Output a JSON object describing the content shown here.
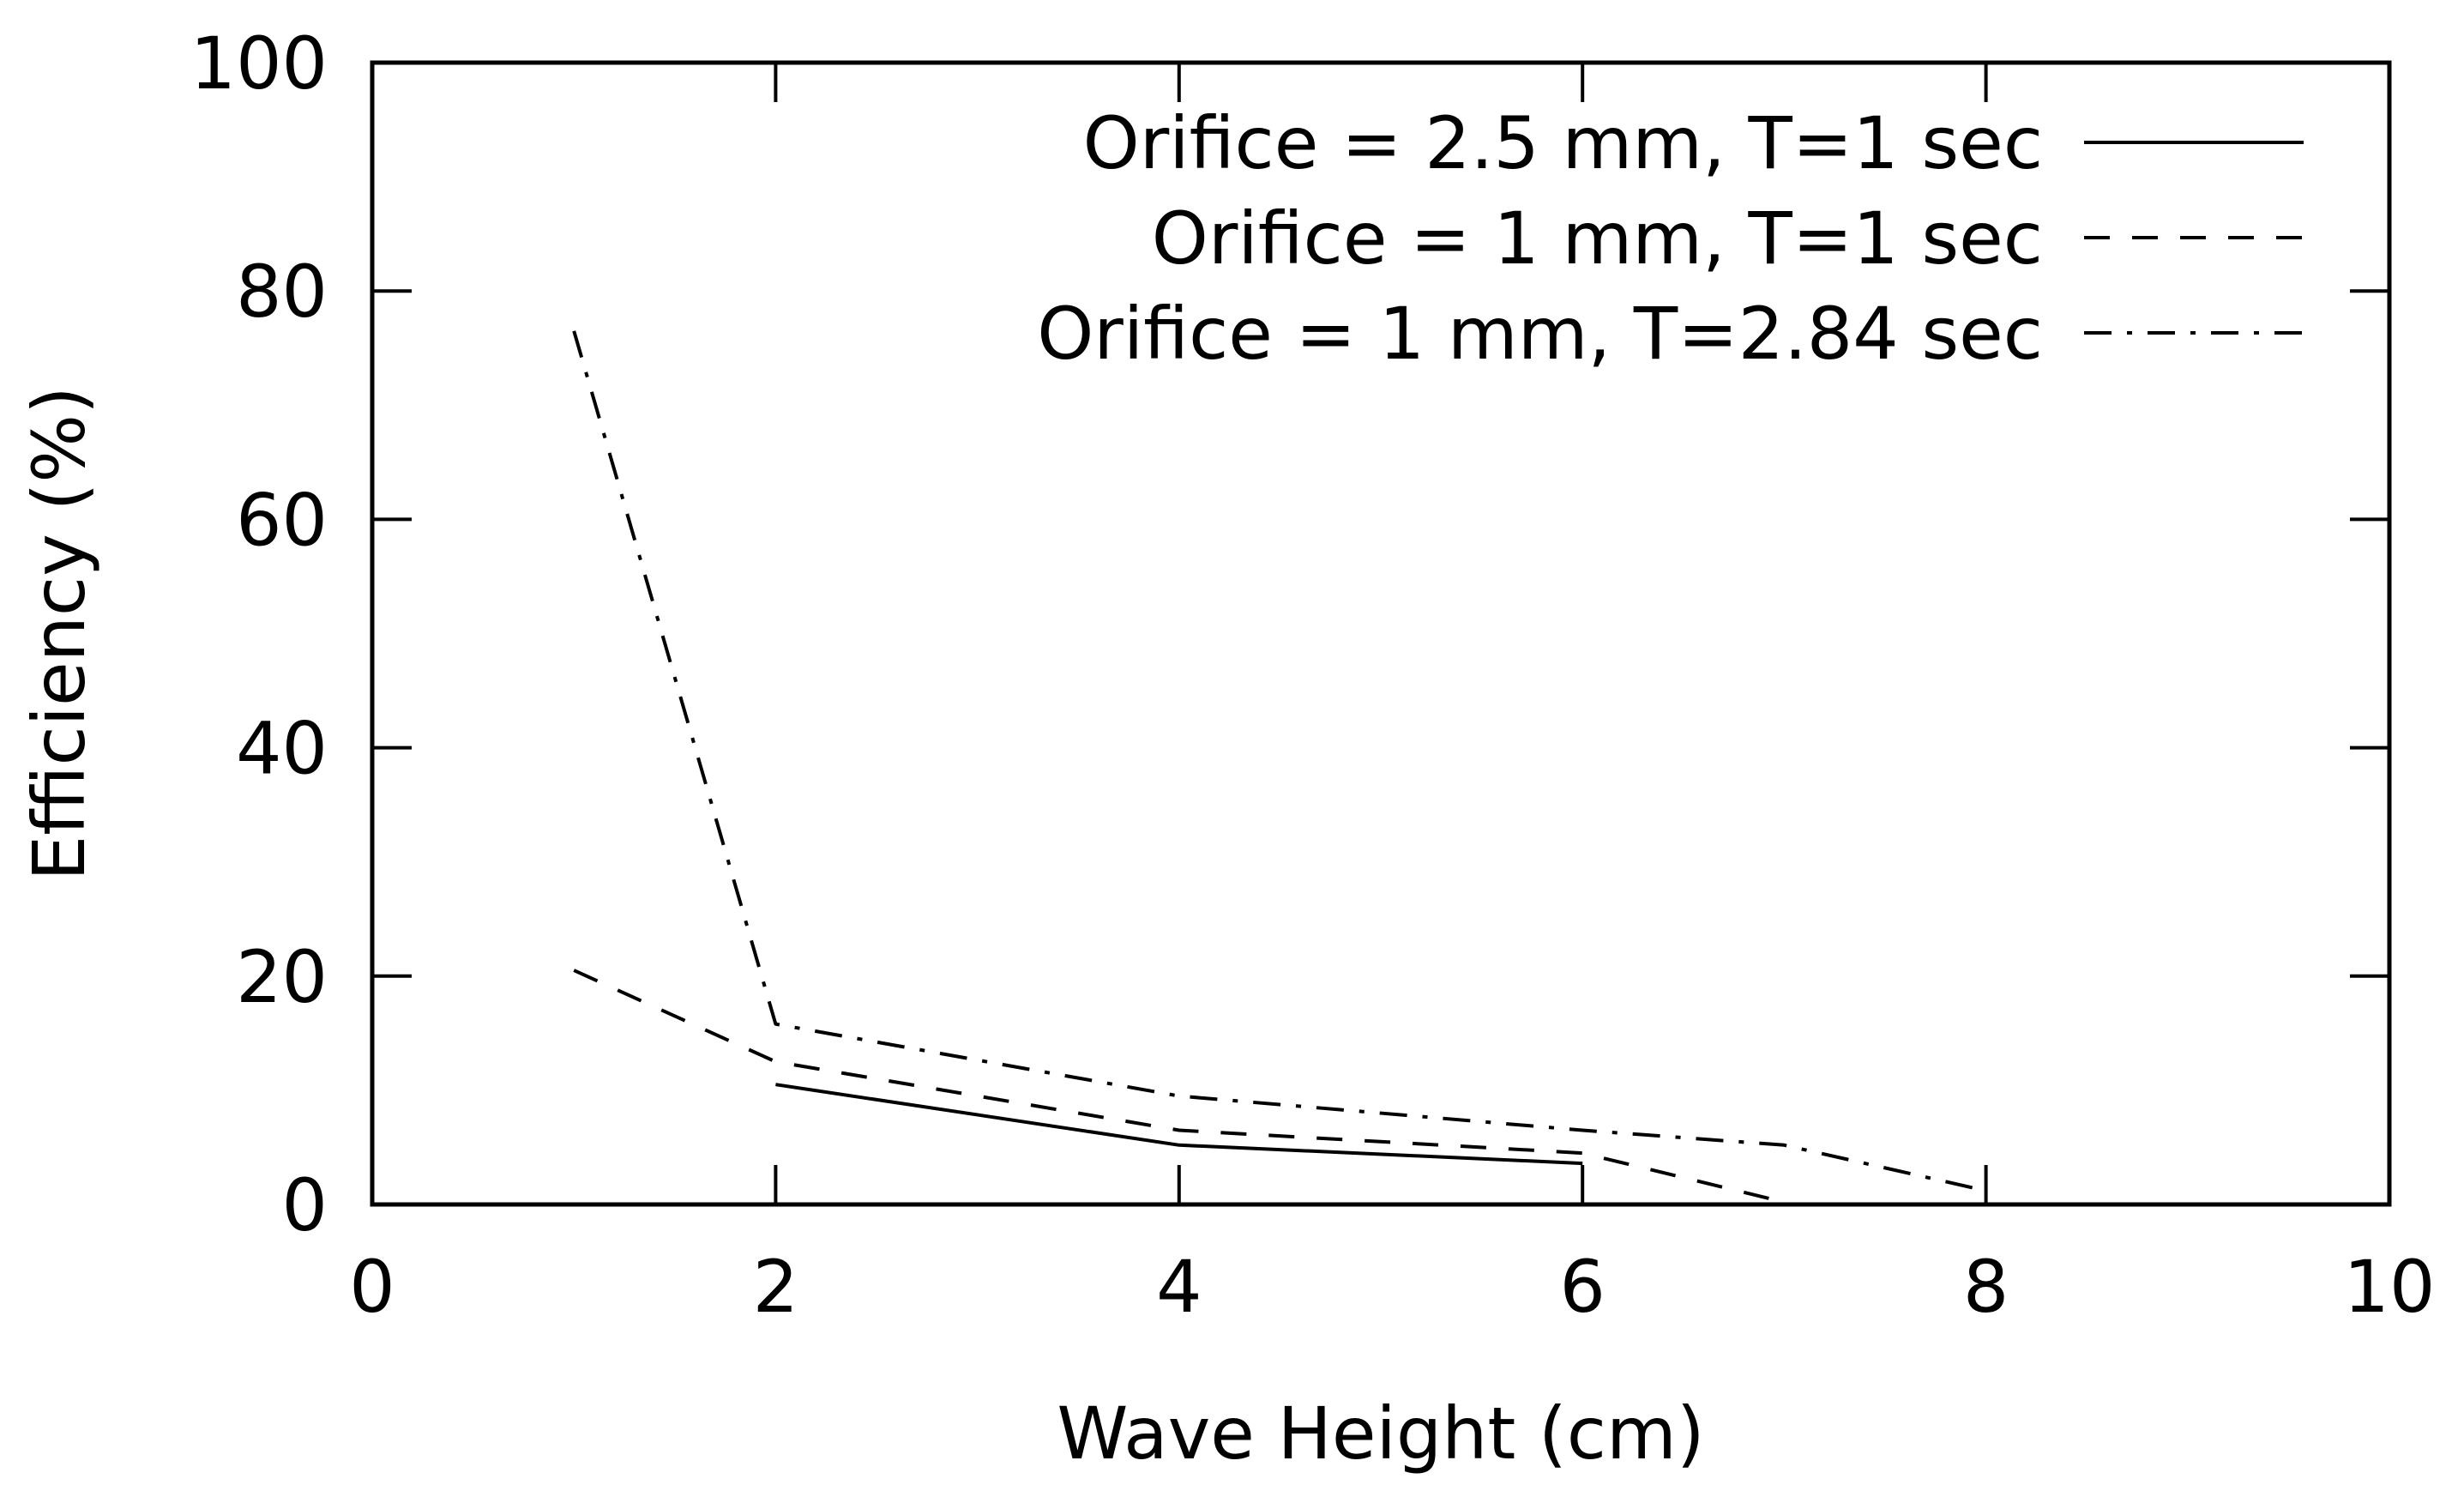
{
  "chart_data": {
    "type": "line",
    "title": "",
    "xlabel": "Wave Height (cm)",
    "ylabel": "Efficiency (%)",
    "xlim": [
      0,
      10
    ],
    "ylim": [
      0,
      100
    ],
    "xticks": [
      0,
      2,
      4,
      6,
      8,
      10
    ],
    "yticks": [
      0,
      20,
      40,
      60,
      80,
      100
    ],
    "grid": false,
    "legend_position": "top-right",
    "series": [
      {
        "name": "Orifice = 2.5 mm, T=1 sec",
        "style": "solid",
        "x": [
          2,
          4,
          6
        ],
        "y": [
          10.5,
          5.2,
          3.6
        ]
      },
      {
        "name": "Orifice = 1 mm, T=1 sec",
        "style": "dashed",
        "x": [
          1,
          2,
          4,
          6,
          7
        ],
        "y": [
          20.5,
          12.5,
          6.5,
          4.5,
          0.2
        ]
      },
      {
        "name": "Orifice = 1 mm, T=2.84 sec",
        "style": "dashdot",
        "x": [
          1,
          2,
          4,
          6,
          7,
          8
        ],
        "y": [
          76.5,
          15.8,
          9.5,
          6.5,
          5.2,
          1.2
        ]
      }
    ]
  }
}
